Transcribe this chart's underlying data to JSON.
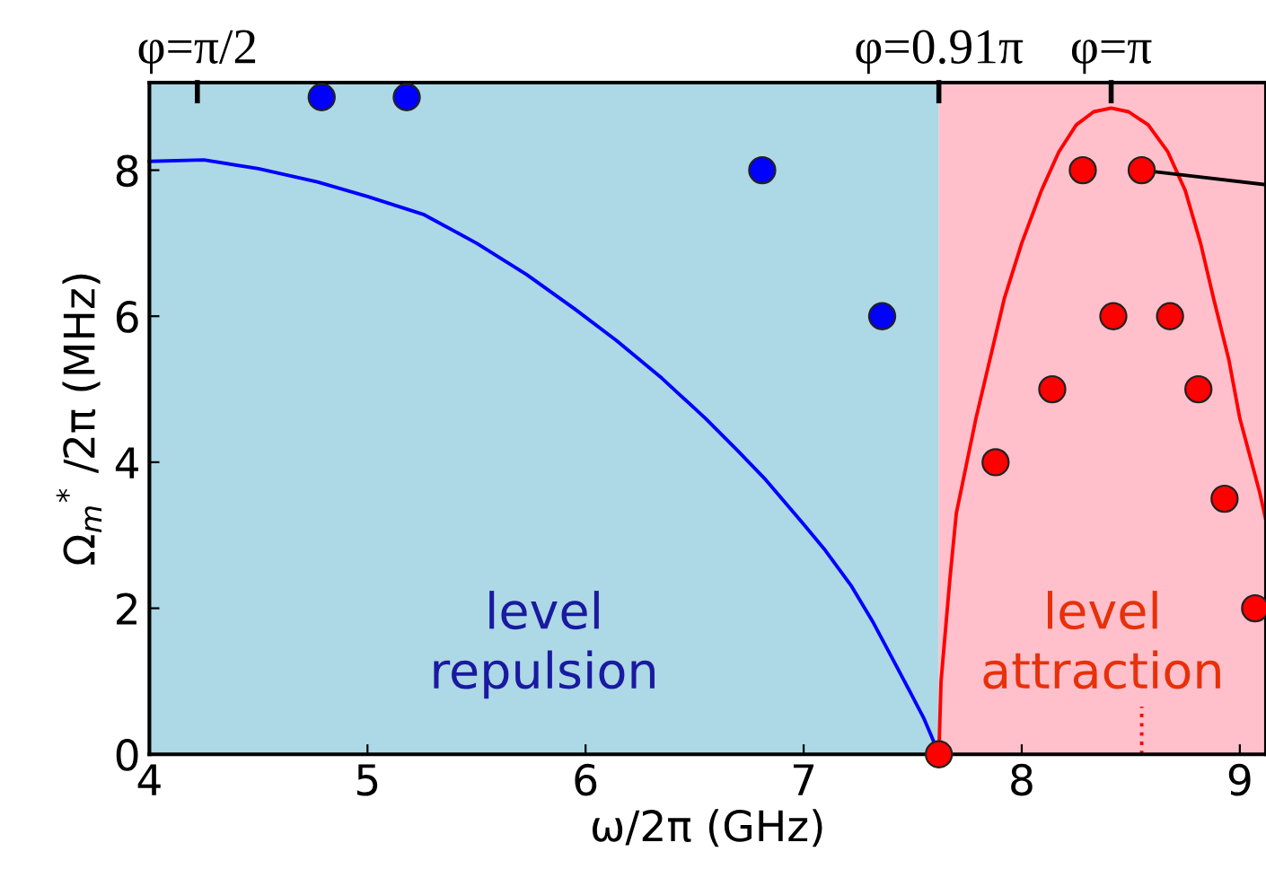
{
  "chart_data": {
    "type": "scatter",
    "xlabel": "ω/2π (GHz)",
    "ylabel": "Ω$_{m}$$^{*}$ /2π (MHz)",
    "xlim": [
      4,
      9.12
    ],
    "xticks": [
      4,
      5,
      6,
      7,
      8,
      9
    ],
    "ylim": [
      0,
      9.2
    ],
    "yticks": [
      0,
      2,
      4,
      6,
      8
    ],
    "annotations": [
      {
        "text": "φ=π/2",
        "x": 4.22,
        "y": 9.2
      },
      {
        "text": "φ=0.91π",
        "x": 7.62,
        "y": 9.2
      },
      {
        "text": "φ=π",
        "x": 8.41,
        "y": 9.2
      }
    ],
    "grid": false,
    "legend": false,
    "bands": [
      {
        "axis": "x",
        "from": 4,
        "to": 7.62,
        "label": "level\nrepulsion",
        "color": "#add8e6"
      },
      {
        "axis": "x",
        "from": 7.62,
        "to": 9.12,
        "label": "level\nattraction",
        "color": "#ffc0cb"
      }
    ],
    "series": [
      {
        "type": "line",
        "color": "#0000ff",
        "line_style": "solid",
        "marker": "none",
        "x": [
          4,
          4.25,
          4.5,
          4.77,
          5.0,
          5.26,
          5.5,
          5.73,
          5.95,
          6.14,
          6.35,
          6.55,
          6.7,
          6.82,
          7.0,
          7.1,
          7.22,
          7.32,
          7.4,
          7.48,
          7.55,
          7.61,
          7.62
        ],
        "values": [
          8.12,
          8.14,
          8.02,
          7.84,
          7.64,
          7.39,
          7.0,
          6.57,
          6.1,
          5.67,
          5.15,
          4.6,
          4.15,
          3.78,
          3.15,
          2.79,
          2.3,
          1.8,
          1.35,
          0.9,
          0.5,
          0.08,
          0
        ]
      },
      {
        "type": "line",
        "color": "#ff0000",
        "line_style": "solid",
        "marker": "none",
        "x": [
          7.62,
          7.63,
          7.67,
          7.7,
          7.79,
          7.92,
          8.0,
          8.09,
          8.17,
          8.25,
          8.33,
          8.41,
          8.49,
          8.58,
          8.67,
          8.75,
          8.82,
          8.88,
          8.95,
          9.0,
          9.09,
          9.12
        ],
        "values": [
          0,
          1.0,
          2.38,
          3.3,
          4.6,
          6.24,
          7.0,
          7.72,
          8.25,
          8.62,
          8.8,
          8.85,
          8.8,
          8.62,
          8.25,
          7.72,
          7.0,
          6.24,
          5.4,
          4.6,
          3.6,
          3.2
        ]
      },
      {
        "type": "line",
        "color": "#000000",
        "line_style": "solid",
        "marker": "none",
        "x": [
          8.55,
          9.12
        ],
        "values": [
          8,
          7.8
        ]
      },
      {
        "type": "line",
        "color": "#ff0000",
        "line_style": "dotted",
        "marker": "none",
        "x": [
          8.55,
          8.55
        ],
        "values": [
          0,
          0.65
        ]
      },
      {
        "color": "#0000ff",
        "marker": "circle",
        "x": [
          4.79,
          5.18,
          6.81,
          7.36
        ],
        "values": [
          9.0,
          9.0,
          8,
          6
        ]
      },
      {
        "color": "#ff0000",
        "marker": "circle",
        "x": [
          8.28,
          8.55,
          8.42,
          8.68,
          8.14,
          8.81,
          7.88,
          8.93,
          9.07,
          7.62
        ],
        "values": [
          8,
          8,
          6,
          6,
          5,
          5,
          4,
          3.5,
          2,
          0
        ]
      }
    ]
  }
}
